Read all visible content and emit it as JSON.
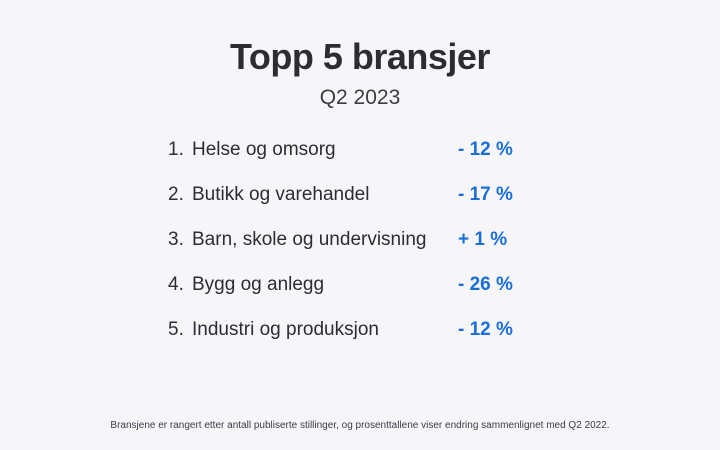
{
  "title": "Topp 5 bransjer",
  "subtitle": "Q2 2023",
  "rows": [
    {
      "rank": "1.",
      "name": "Helse og omsorg",
      "change": "- 12 %"
    },
    {
      "rank": "2.",
      "name": "Butikk og varehandel",
      "change": "- 17 %"
    },
    {
      "rank": "3.",
      "name": "Barn, skole og undervisning",
      "change": "+ 1 %"
    },
    {
      "rank": "4.",
      "name": "Bygg og anlegg",
      "change": "- 26 %"
    },
    {
      "rank": "5.",
      "name": "Industri og produksjon",
      "change": "- 12 %"
    }
  ],
  "footnote": "Bransjene er rangert etter antall publiserte stillinger, og prosenttallene viser endring sammenlignet med Q2 2022.",
  "colors": {
    "background": "#f6f6f8",
    "text": "#2b2d33",
    "accent": "#1a6ed8"
  }
}
